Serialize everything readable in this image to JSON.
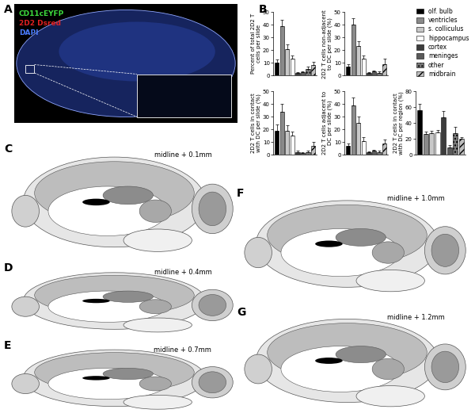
{
  "image": {
    "panel": "A",
    "channels": [
      {
        "text": "CD11cEYFP",
        "color": "#3ddc3d"
      },
      {
        "text": "2D2 Dsred",
        "color": "#e02020"
      },
      {
        "text": "DAPI",
        "color": "#4a7cff"
      }
    ]
  },
  "charts_panel": "B",
  "chart_data": [
    {
      "type": "bar",
      "ylabel": "Percent of total 2D2 T cells per slide",
      "categories": [
        "olf. bulb",
        "ventricles",
        "s. colliculus",
        "hippocampus",
        "cortex",
        "meninges",
        "other",
        "midbrain"
      ],
      "colors": [
        "#000000",
        "#8a8a8a",
        "#c8c8c8",
        "#ffffff",
        "#3c3c3c",
        "#5a5a5a",
        "#7a7a7a",
        "#bdbdbd"
      ],
      "values": [
        10,
        39,
        21,
        13,
        2,
        2.5,
        5,
        8
      ],
      "errors": [
        2.5,
        5,
        3.5,
        3,
        0.5,
        0.8,
        2,
        3
      ],
      "ylim": [
        0,
        50
      ],
      "yticks": [
        0,
        10,
        20,
        30,
        40,
        50
      ],
      "tick_labels": "y",
      "legend": "upper right"
    },
    {
      "type": "bar",
      "ylabel": "2D2 T cells non-adjacent to DC per slide (%)",
      "categories": [
        "olf. bulb",
        "ventricles",
        "s. colliculus",
        "hippocampus",
        "cortex",
        "meninges",
        "other",
        "midbrain"
      ],
      "colors": [
        "#000000",
        "#8a8a8a",
        "#c8c8c8",
        "#ffffff",
        "#3c3c3c",
        "#5a5a5a",
        "#7a7a7a",
        "#bdbdbd"
      ],
      "values": [
        7,
        40,
        23,
        13,
        2,
        3,
        2,
        9
      ],
      "errors": [
        2,
        5,
        4,
        3,
        0.5,
        1,
        1,
        4
      ],
      "ylim": [
        0,
        50
      ],
      "yticks": [
        0,
        10,
        20,
        30,
        40,
        50
      ],
      "tick_labels": "y"
    },
    {
      "type": "bar",
      "ylabel": "2D2 T cells in contact with DC per slide (%)",
      "categories": [
        "olf. bulb",
        "ventricles",
        "s. colliculus",
        "hippocampus",
        "cortex",
        "meninges",
        "other",
        "midbrain"
      ],
      "colors": [
        "#000000",
        "#8a8a8a",
        "#c8c8c8",
        "#ffffff",
        "#3c3c3c",
        "#5a5a5a",
        "#7a7a7a",
        "#bdbdbd"
      ],
      "values": [
        19,
        34,
        19,
        15,
        2,
        1.5,
        2,
        7
      ],
      "errors": [
        5,
        6,
        4,
        3,
        1,
        0.5,
        1,
        3
      ],
      "ylim": [
        0,
        50
      ],
      "yticks": [
        0,
        10,
        20,
        30,
        40,
        50
      ],
      "tick_labels": "y"
    },
    {
      "type": "bar",
      "ylabel": "2D2 T cells adjacent to DC per slide (%)",
      "categories": [
        "olf. bulb",
        "ventricles",
        "s. colliculus",
        "hippocampus",
        "cortex",
        "meninges",
        "other",
        "midbrain"
      ],
      "colors": [
        "#000000",
        "#8a8a8a",
        "#c8c8c8",
        "#ffffff",
        "#3c3c3c",
        "#5a5a5a",
        "#7a7a7a",
        "#bdbdbd"
      ],
      "values": [
        7,
        39,
        25,
        11,
        2,
        3,
        2,
        9
      ],
      "errors": [
        2,
        6,
        5,
        3,
        0.5,
        1,
        1,
        3
      ],
      "ylim": [
        0,
        50
      ],
      "yticks": [
        0,
        10,
        20,
        30,
        40,
        50
      ],
      "tick_labels": "y"
    },
    {
      "type": "bar",
      "ylabel": "2D2 T cells in contact with DC per region (%)",
      "categories": [
        "olf. bulb",
        "ventricles",
        "s. colliculus",
        "hippocampus",
        "cortex",
        "meninges",
        "other",
        "midbrain"
      ],
      "colors": [
        "#000000",
        "#8a8a8a",
        "#c8c8c8",
        "#ffffff",
        "#3c3c3c",
        "#5a5a5a",
        "#7a7a7a",
        "#bdbdbd"
      ],
      "values": [
        56,
        26,
        27,
        28,
        47,
        9,
        27,
        20
      ],
      "errors": [
        8,
        3,
        3,
        3,
        8,
        3,
        8,
        2
      ],
      "ylim": [
        0,
        80
      ],
      "yticks": [
        0,
        20,
        40,
        60,
        80
      ],
      "tick_labels": "y"
    }
  ],
  "sections": [
    {
      "panel": "C",
      "label": "midline + 0.1mm"
    },
    {
      "panel": "D",
      "label": "midline + 0.4mm"
    },
    {
      "panel": "E",
      "label": "midline + 0.7mm"
    },
    {
      "panel": "F",
      "label": "midline + 1.0mm"
    },
    {
      "panel": "G",
      "label": "midline + 1.2mm"
    }
  ]
}
